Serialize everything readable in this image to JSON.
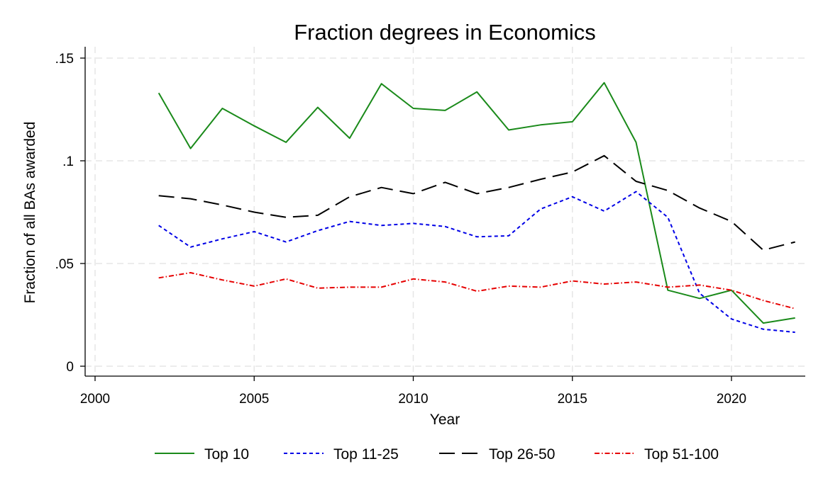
{
  "chart_data": {
    "type": "line",
    "title": "Fraction degrees in Economics",
    "xlabel": "Year",
    "ylabel": "Fraction of all BAs awarded",
    "xlim": [
      2000,
      2022
    ],
    "ylim": [
      0,
      0.15
    ],
    "xticks": [
      2000,
      2005,
      2010,
      2015,
      2020
    ],
    "xtick_labels": [
      "2000",
      "2005",
      "2010",
      "2015",
      "2020"
    ],
    "yticks": [
      0,
      0.05,
      0.1,
      0.15
    ],
    "ytick_labels": [
      "0",
      ".05",
      ".1",
      ".15"
    ],
    "grid": true,
    "legend_position": "bottom",
    "x": [
      2002,
      2003,
      2004,
      2005,
      2006,
      2007,
      2008,
      2009,
      2010,
      2011,
      2012,
      2013,
      2014,
      2015,
      2016,
      2017,
      2018,
      2019,
      2020,
      2021,
      2022
    ],
    "series": [
      {
        "name": "Top 10",
        "color": "#1a8a1a",
        "dash": "solid",
        "values": [
          0.133,
          0.106,
          0.1255,
          0.117,
          0.109,
          0.126,
          0.111,
          0.1375,
          0.1255,
          0.1245,
          0.1335,
          0.115,
          0.1175,
          0.119,
          0.138,
          0.109,
          0.037,
          0.033,
          0.037,
          0.021,
          0.0235
        ]
      },
      {
        "name": "Top 11-25",
        "color": "#0000e6",
        "dash": "short-dash",
        "values": [
          0.0685,
          0.058,
          0.062,
          0.0655,
          0.0605,
          0.066,
          0.0705,
          0.0685,
          0.0695,
          0.068,
          0.063,
          0.0635,
          0.0765,
          0.0825,
          0.0755,
          0.085,
          0.0725,
          0.0355,
          0.023,
          0.018,
          0.0165
        ]
      },
      {
        "name": "Top 26-50",
        "color": "#000000",
        "dash": "long-dash",
        "values": [
          0.083,
          0.0815,
          0.0785,
          0.075,
          0.0725,
          0.0735,
          0.0825,
          0.087,
          0.084,
          0.0895,
          0.084,
          0.087,
          0.091,
          0.0945,
          0.1025,
          0.09,
          0.0855,
          0.077,
          0.0705,
          0.0565,
          0.0605
        ]
      },
      {
        "name": "Top 51-100",
        "color": "#e60000",
        "dash": "dash-dot",
        "values": [
          0.043,
          0.0455,
          0.042,
          0.039,
          0.0425,
          0.038,
          0.0385,
          0.0385,
          0.0425,
          0.041,
          0.0365,
          0.039,
          0.0385,
          0.0415,
          0.04,
          0.041,
          0.0385,
          0.0395,
          0.037,
          0.032,
          0.028
        ]
      }
    ]
  }
}
